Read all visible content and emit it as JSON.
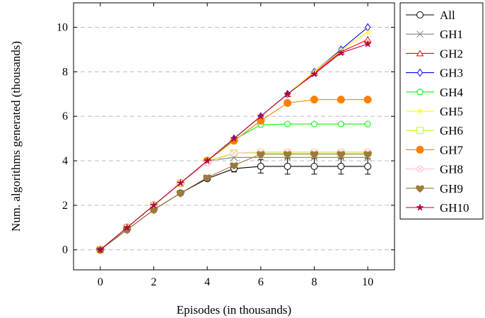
{
  "chart_data": {
    "type": "line",
    "title": "",
    "xlabel": "Episodes (in thousands)",
    "ylabel": "Num. algorithms generated (thousands)",
    "xlim": [
      -1,
      11
    ],
    "ylim": [
      -0.9,
      11.1
    ],
    "xticks": [
      0,
      2,
      4,
      6,
      8,
      10
    ],
    "yticks": [
      0,
      2,
      4,
      6,
      8,
      10
    ],
    "grid": "horizontal-dashed",
    "legend": "outside-right",
    "x": [
      0,
      1,
      2,
      3,
      4,
      5,
      6,
      7,
      8,
      9,
      10
    ],
    "series": [
      {
        "name": "All",
        "color": "#000000",
        "marker": "circle-open",
        "values": [
          0,
          0.9,
          1.8,
          2.55,
          3.2,
          3.65,
          3.75,
          3.75,
          3.75,
          3.75,
          3.75
        ],
        "error": [
          0,
          0,
          0,
          0,
          0,
          0.15,
          0.3,
          0.35,
          0.35,
          0.35,
          0.35
        ]
      },
      {
        "name": "GH1",
        "color": "#808080",
        "marker": "cross",
        "values": [
          0,
          1.0,
          2.0,
          3.0,
          4.0,
          4.15,
          4.15,
          4.15,
          4.15,
          4.15,
          4.15
        ]
      },
      {
        "name": "GH2",
        "color": "#ff0000",
        "marker": "triangle-open",
        "values": [
          0,
          1.0,
          2.0,
          3.0,
          4.0,
          5.0,
          6.0,
          7.0,
          7.95,
          8.9,
          9.45
        ]
      },
      {
        "name": "GH3",
        "color": "#0000ff",
        "marker": "diamond-open",
        "values": [
          0,
          1.0,
          2.0,
          3.0,
          4.0,
          5.0,
          6.0,
          7.0,
          8.0,
          9.0,
          10.0
        ]
      },
      {
        "name": "GH4",
        "color": "#00ff00",
        "marker": "pentagon-open",
        "values": [
          0,
          1.0,
          2.0,
          3.0,
          4.0,
          4.95,
          5.62,
          5.65,
          5.65,
          5.65,
          5.65
        ]
      },
      {
        "name": "GH5",
        "color": "#ffff00",
        "marker": "asterisk",
        "values": [
          0,
          1.0,
          2.0,
          3.0,
          4.0,
          5.0,
          6.0,
          7.0,
          8.0,
          8.95,
          9.8
        ]
      },
      {
        "name": "GH6",
        "color": "#bfff00",
        "marker": "square-open",
        "values": [
          0,
          1.0,
          2.0,
          3.0,
          4.0,
          4.35,
          4.35,
          4.35,
          4.35,
          4.35,
          4.35
        ]
      },
      {
        "name": "GH7",
        "color": "#ff8000",
        "marker": "circle-filled",
        "values": [
          0,
          1.0,
          2.0,
          3.0,
          4.0,
          4.9,
          5.8,
          6.6,
          6.75,
          6.75,
          6.75
        ]
      },
      {
        "name": "GH8",
        "color": "#ffc0cb",
        "marker": "circle-x",
        "values": [
          0,
          1.0,
          2.0,
          3.0,
          3.9,
          4.35,
          4.4,
          4.4,
          4.4,
          4.4,
          4.4
        ]
      },
      {
        "name": "GH9",
        "color": "#a0783c",
        "marker": "heart-filled",
        "values": [
          0,
          0.9,
          1.8,
          2.55,
          3.25,
          3.8,
          4.3,
          4.3,
          4.3,
          4.3,
          4.3
        ]
      },
      {
        "name": "GH10",
        "color": "#b00040",
        "marker": "star",
        "values": [
          0,
          1.0,
          2.0,
          3.0,
          4.0,
          5.0,
          6.0,
          7.0,
          7.9,
          8.85,
          9.25
        ]
      }
    ]
  }
}
